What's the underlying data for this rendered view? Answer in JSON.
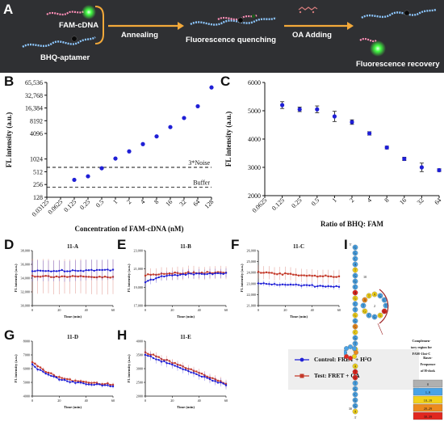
{
  "panel_a": {
    "letter": "A",
    "labels": {
      "fam": "FAM-cDNA",
      "bhq": "BHQ-aptamer",
      "annealing": "Annealing",
      "quench": "Fluorescence quenching",
      "oa": "OA Adding",
      "recovery": "Fluorescence recovery"
    },
    "colors": {
      "background": "#2f3033",
      "arrow": "#f3a93a",
      "glow": "#43ff43",
      "strand_blue": "#8ec8ff",
      "strand_pink": "#ff8fb8"
    }
  },
  "panel_letters": {
    "b": "B",
    "c": "C",
    "d": "D",
    "e": "E",
    "f": "F",
    "g": "G",
    "h": "H",
    "i": "I"
  },
  "chart_data": [
    {
      "id": "B",
      "type": "scatter",
      "xlabel": "Concentration of FAM-cDNA (nM)",
      "ylabel": "FL intensity (a.u.)",
      "x_scale": "log2",
      "y_scale": "log2",
      "x_ticks": [
        "0.03125",
        "0.0625",
        "0.125",
        "0.25",
        "0.5",
        "1",
        "2",
        "4",
        "8",
        "16",
        "32",
        "64",
        "128"
      ],
      "y_ticks": [
        "128",
        "256",
        "512",
        "1024",
        "4096",
        "8192",
        "16,384",
        "32,768",
        "65,536"
      ],
      "xlim": [
        0.03125,
        128
      ],
      "ylim": [
        128,
        65536
      ],
      "x": [
        0.125,
        0.25,
        0.5,
        1,
        2,
        4,
        8,
        16,
        32,
        64,
        128
      ],
      "y": [
        330,
        400,
        620,
        1050,
        1550,
        2300,
        3500,
        5800,
        9500,
        18000,
        50000
      ],
      "color": "#1f1fd6",
      "reference_lines": [
        {
          "label": "3*Noise",
          "y": 650
        },
        {
          "label": "Buffer",
          "y": 220
        }
      ]
    },
    {
      "id": "C",
      "type": "scatter",
      "xlabel": "Ratio of BHQ: FAM",
      "ylabel": "FL intensity (a.u.)",
      "x_scale": "log2",
      "x_ticks": [
        "0.0625",
        "0.125",
        "0.25",
        "0.5",
        "1",
        "2",
        "4",
        "8",
        "16",
        "32",
        "64"
      ],
      "y_ticks": [
        "2000",
        "3000",
        "4000",
        "5000",
        "6000"
      ],
      "xlim": [
        0.0625,
        64
      ],
      "ylim": [
        2000,
        6000
      ],
      "x": [
        0.125,
        0.25,
        0.5,
        1,
        2,
        4,
        8,
        16,
        32,
        64
      ],
      "y": [
        5200,
        5050,
        5050,
        4800,
        4600,
        4200,
        3700,
        3300,
        3000,
        2900
      ],
      "err": [
        120,
        80,
        120,
        180,
        80,
        60,
        50,
        60,
        150,
        50
      ],
      "color": "#1f1fd6"
    },
    {
      "id": "D",
      "title": "11-A",
      "type": "line",
      "xlabel": "Time (min)",
      "ylabel": "FL intensity (a.u.)",
      "y_ticks": [
        "30,000",
        "32,000",
        "34,000",
        "36,000",
        "38,000"
      ],
      "ylim": [
        30000,
        38000
      ],
      "x_ticks": [
        "0",
        "20",
        "40",
        "60"
      ],
      "xlim": [
        0,
        60
      ],
      "series": [
        {
          "name": "Control: FRET + H2O",
          "color": "#1f1fd6",
          "start": 35000,
          "end": 35200,
          "shape": "flat",
          "err": 1500
        },
        {
          "name": "Test: FRET + OA",
          "color": "#c43a2a",
          "start": 34300,
          "end": 34100,
          "shape": "flat",
          "err": 2500
        }
      ]
    },
    {
      "id": "E",
      "title": "11-B",
      "type": "line",
      "xlabel": "Time (min)",
      "ylabel": "FL intensity (a.u.)",
      "y_ticks": [
        "17,000",
        "19,000",
        "21,000",
        "23,000"
      ],
      "ylim": [
        17000,
        23000
      ],
      "x_ticks": [
        "0",
        "20",
        "40",
        "60"
      ],
      "xlim": [
        0,
        60
      ],
      "series": [
        {
          "name": "Control: FRET + H2O",
          "color": "#1f1fd6",
          "start": 19500,
          "end": 20500,
          "shape": "rise",
          "err": 500
        },
        {
          "name": "Test: FRET + OA",
          "color": "#c43a2a",
          "start": 20300,
          "end": 20600,
          "shape": "rise",
          "err": 700
        }
      ]
    },
    {
      "id": "F",
      "title": "11-C",
      "type": "line",
      "xlabel": "Time (min)",
      "ylabel": "FL intensity (a.u.)",
      "y_ticks": [
        "21,000",
        "22,000",
        "23,000",
        "24,000",
        "25,000",
        "26,000"
      ],
      "ylim": [
        21000,
        26000
      ],
      "x_ticks": [
        "0",
        "20",
        "40",
        "60"
      ],
      "xlim": [
        0,
        60
      ],
      "series": [
        {
          "name": "Control: FRET + H2O",
          "color": "#1f1fd6",
          "start": 23000,
          "end": 22700,
          "shape": "flat",
          "err": 250
        },
        {
          "name": "Test: FRET + OA",
          "color": "#c43a2a",
          "start": 24000,
          "end": 23600,
          "shape": "flat",
          "err": 600
        }
      ]
    },
    {
      "id": "G",
      "title": "11-D",
      "type": "line",
      "xlabel": "Time (min)",
      "ylabel": "FL intensity (a.u.)",
      "y_ticks": [
        "4000",
        "5000",
        "6000",
        "7000",
        "8000"
      ],
      "ylim": [
        4000,
        8000
      ],
      "x_ticks": [
        "0",
        "20",
        "40",
        "60"
      ],
      "xlim": [
        0,
        60
      ],
      "series": [
        {
          "name": "Control: FRET + H2O",
          "color": "#1f1fd6",
          "start": 6300,
          "end": 4700,
          "shape": "decay",
          "err": 150
        },
        {
          "name": "Test: FRET + OA",
          "color": "#c43a2a",
          "start": 6500,
          "end": 4800,
          "shape": "decay",
          "err": 150
        }
      ]
    },
    {
      "id": "H",
      "title": "11-E",
      "type": "line",
      "xlabel": "Time (min)",
      "ylabel": "FL intensity (a.u.)",
      "y_ticks": [
        "2000",
        "2500",
        "3000",
        "3500",
        "4000"
      ],
      "ylim": [
        2000,
        4000
      ],
      "x_ticks": [
        "0",
        "20",
        "40",
        "60"
      ],
      "xlim": [
        0,
        60
      ],
      "series": [
        {
          "name": "Control: FRET + H2O",
          "color": "#1f1fd6",
          "start": 3500,
          "end": 2400,
          "shape": "linear",
          "err": 150
        },
        {
          "name": "Test: FRET + OA",
          "color": "#c43a2a",
          "start": 3600,
          "end": 2450,
          "shape": "linear",
          "err": 150
        }
      ]
    }
  ],
  "legend": {
    "control": "Control: FRET + H",
    "control_sub": "2",
    "control_tail": "O",
    "test": "Test: FRET + OA"
  },
  "panel_i": {
    "end5": "5'",
    "end3": "3'",
    "idx10": "10",
    "idx20": "20",
    "idx30": "30",
    "idx2": "2",
    "annotation": [
      "Complemen-",
      "tary region for",
      "FAM-11nt-C"
    ],
    "legend_title": [
      "Bases-",
      "Frequence",
      "of H-dock"
    ],
    "bins": [
      {
        "label": "0",
        "color": "#b0b0b0"
      },
      {
        "label": "1–9",
        "color": "#4aa3e6"
      },
      {
        "label": "10–19",
        "color": "#f2d21b"
      },
      {
        "label": "20–29",
        "color": "#ec8a1e"
      },
      {
        "label": "30–39",
        "color": "#e0271f"
      }
    ],
    "bases": [
      "G",
      "G",
      "C",
      "A",
      "T",
      "G",
      "G",
      "C",
      "A",
      "G",
      "C",
      "T",
      "G",
      "G",
      "G",
      "C",
      "G",
      "T",
      "A",
      "T",
      "C",
      "A",
      "T",
      "G",
      "T",
      "G",
      "C",
      "G",
      "G",
      "A",
      "C",
      "C",
      "C",
      "A",
      "T",
      "A",
      "A",
      "C",
      "T"
    ],
    "colors": {
      "arc": "#a0282a",
      "teal": "#2d9a8e"
    }
  }
}
